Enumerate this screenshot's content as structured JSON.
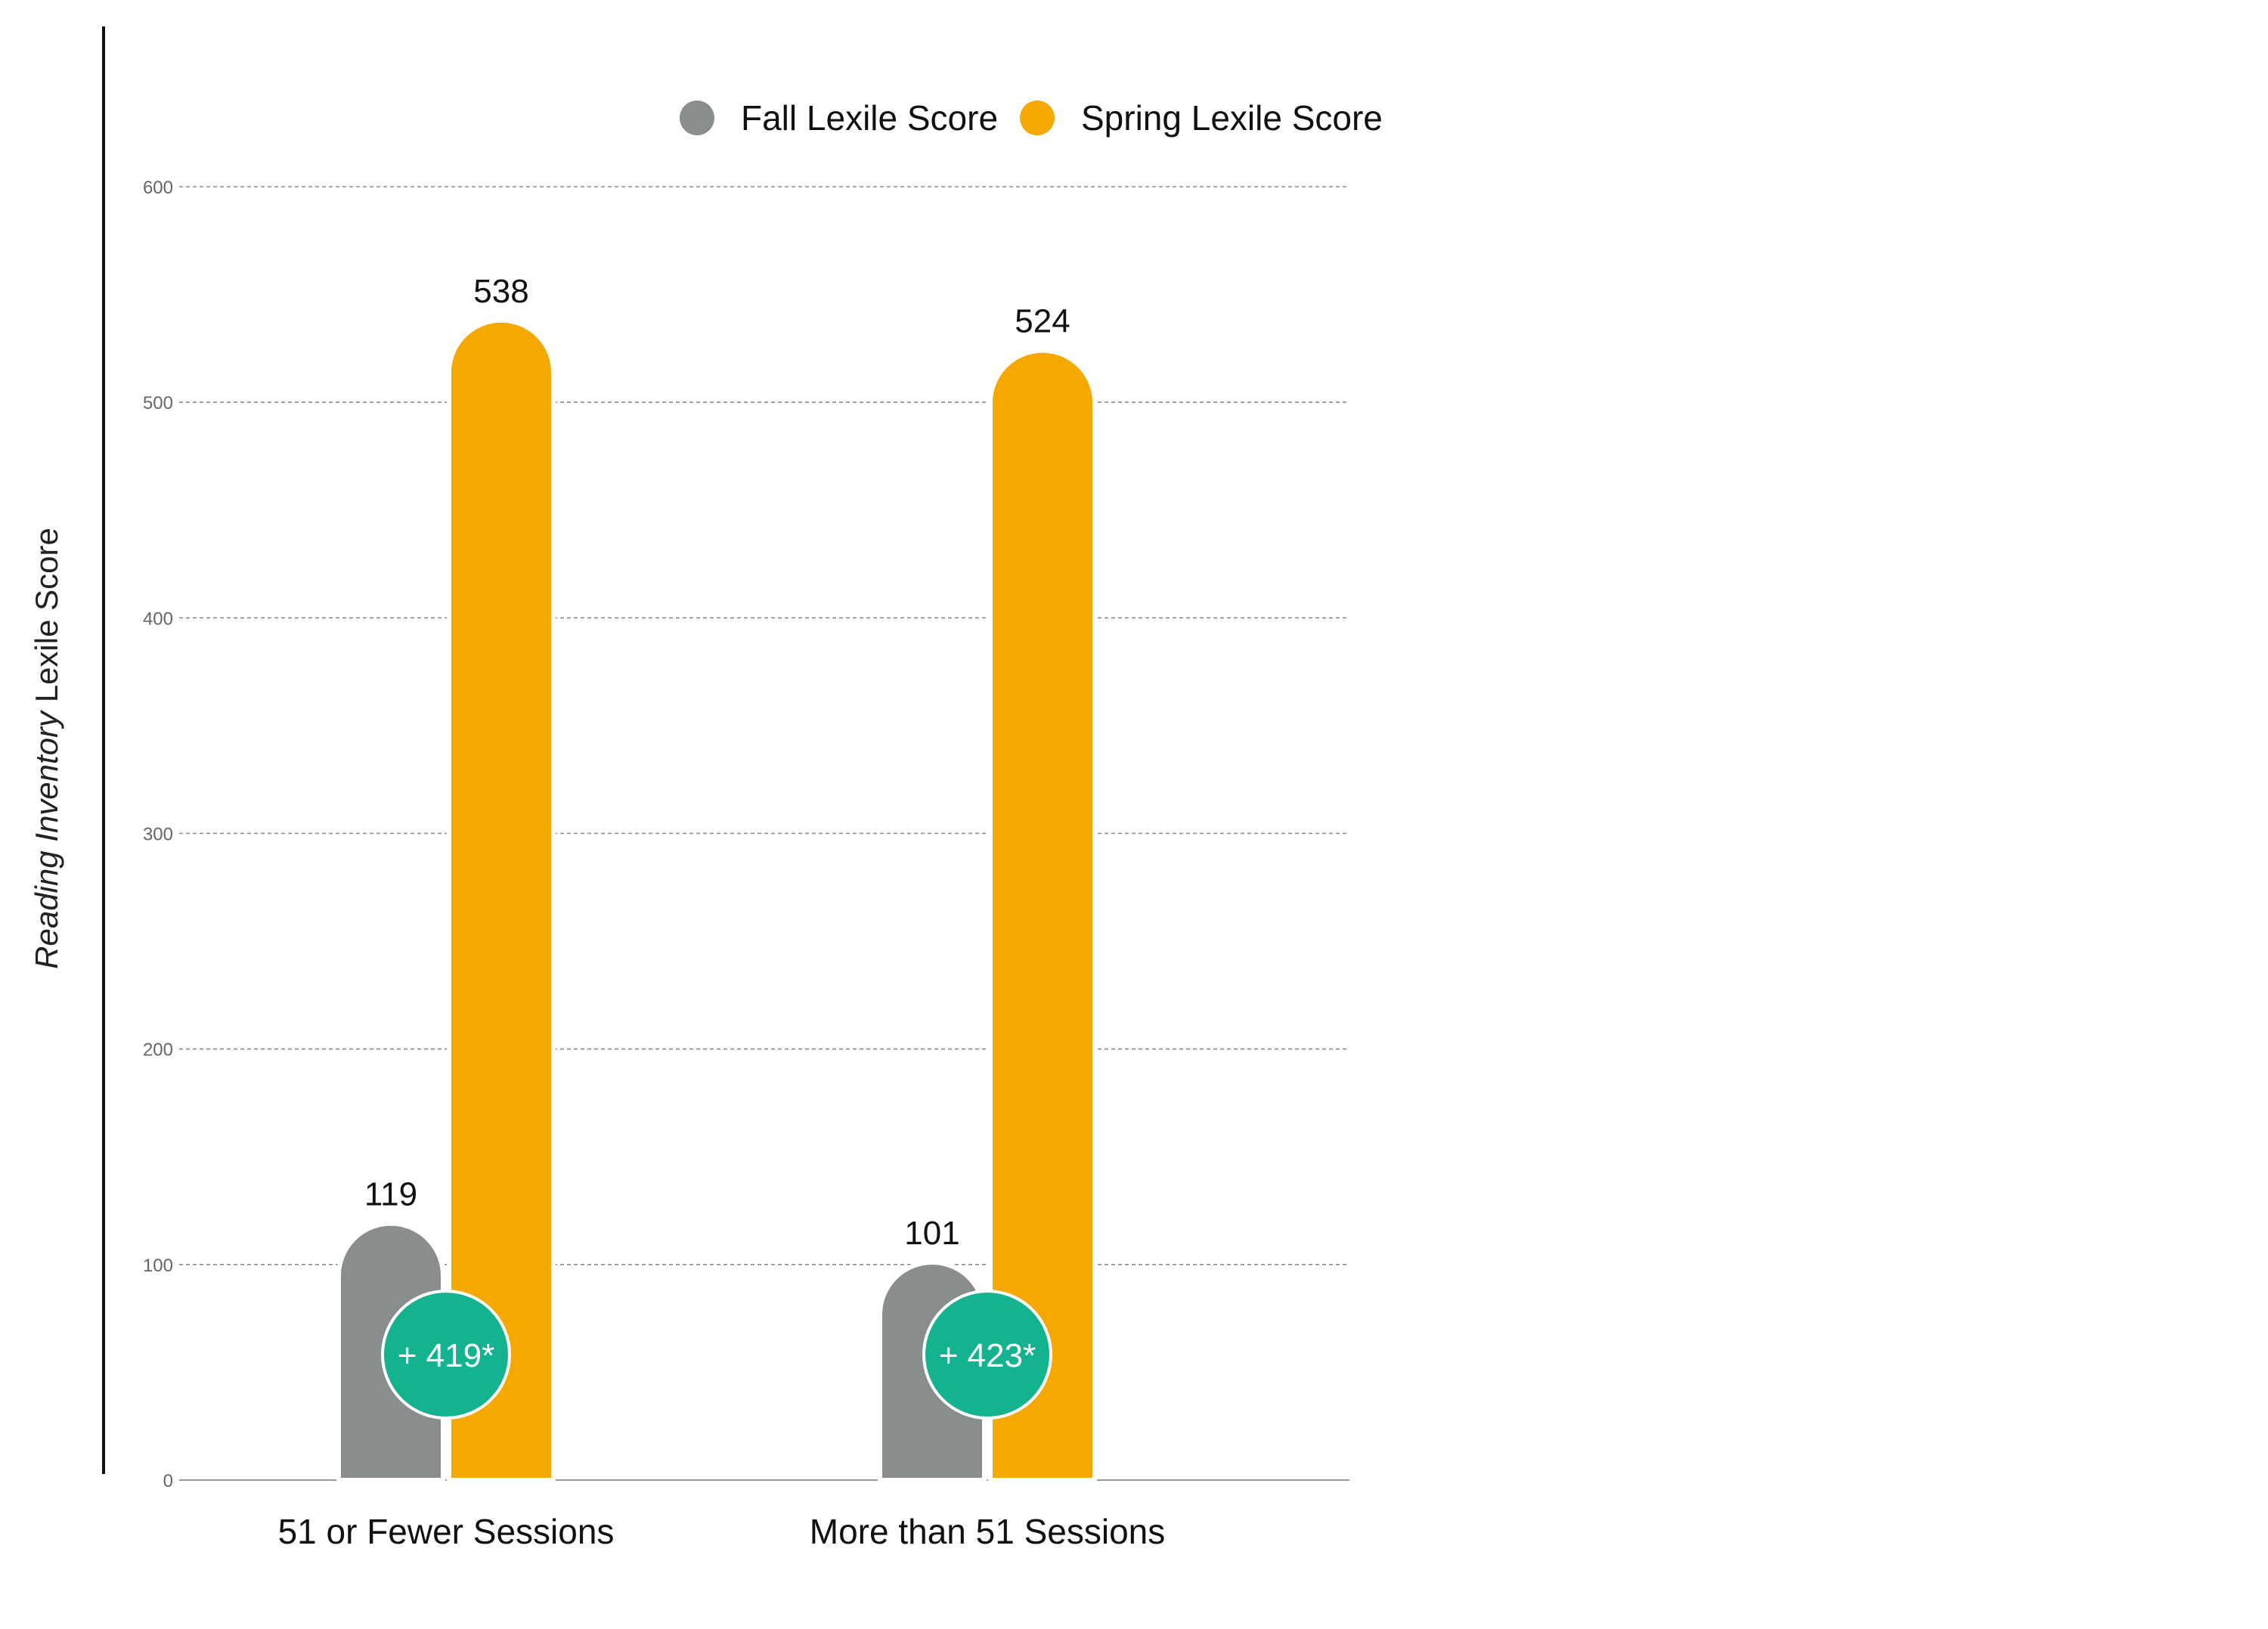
{
  "chart_data": {
    "type": "bar",
    "title": "",
    "xlabel": "",
    "ylabel": {
      "italic_part": "Reading Inventory",
      "regular_part": " Lexile Score"
    },
    "ylim": [
      0,
      600
    ],
    "yticks": [
      "0",
      "100",
      "200",
      "300",
      "400",
      "500",
      "600"
    ],
    "grid": true,
    "legend_position": "top",
    "categories": [
      "51 or Fewer Sessions",
      "More than 51 Sessions"
    ],
    "series": [
      {
        "name": "Fall Lexile Score",
        "color": "#8a8d8d",
        "values": [
          119,
          101
        ],
        "labels": [
          "119",
          "101"
        ]
      },
      {
        "name": "Spring Lexile Score",
        "color": "#f5a800",
        "values": [
          538,
          524
        ],
        "labels": [
          "538",
          "524"
        ]
      }
    ],
    "annotations": [
      {
        "category": "51 or Fewer Sessions",
        "text": "+ 419*",
        "color": "#13b38f"
      },
      {
        "category": "More than 51 Sessions",
        "text": "+ 423*",
        "color": "#13b38f"
      }
    ]
  }
}
